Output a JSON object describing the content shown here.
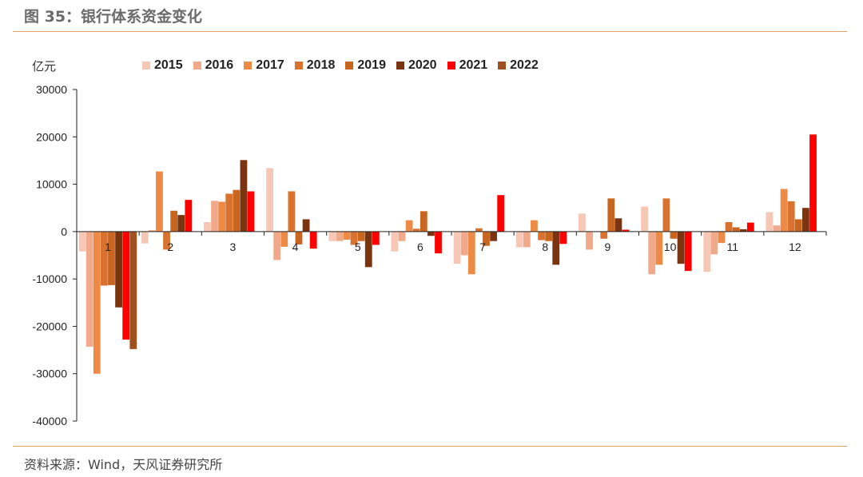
{
  "figure": {
    "title": "图 35：银行体系资金变化",
    "source": "资料来源：Wind，天风证券研究所"
  },
  "chart_data": {
    "type": "bar",
    "ylabel": "亿元",
    "ylim": [
      -40000,
      30000
    ],
    "yticks": [
      30000,
      20000,
      10000,
      0,
      -10000,
      -20000,
      -30000,
      -40000
    ],
    "categories": [
      "1",
      "2",
      "3",
      "4",
      "5",
      "6",
      "7",
      "8",
      "9",
      "10",
      "11",
      "12"
    ],
    "legend_position": "top",
    "series": [
      {
        "name": "2015",
        "color": "#f6c7b4",
        "values": [
          -4200,
          -2500,
          2000,
          13400,
          -2000,
          -4200,
          -6800,
          -3300,
          3800,
          5300,
          -8500,
          4100
        ]
      },
      {
        "name": "2016",
        "color": "#f0a98a",
        "values": [
          -24300,
          300,
          6500,
          -6000,
          -2000,
          -2000,
          -5000,
          -3300,
          -3800,
          -9000,
          -4800,
          1300
        ]
      },
      {
        "name": "2017",
        "color": "#ed8a45",
        "values": [
          -30000,
          12700,
          6300,
          -3200,
          -1700,
          2400,
          -9000,
          2400,
          0,
          -7000,
          -2400,
          9000
        ]
      },
      {
        "name": "2018",
        "color": "#d8722e",
        "values": [
          -11400,
          -3800,
          8000,
          8500,
          -2800,
          600,
          700,
          -1800,
          -1500,
          7000,
          2000,
          6400
        ]
      },
      {
        "name": "2019",
        "color": "#c8651e",
        "values": [
          -11300,
          4400,
          8800,
          -2700,
          -2000,
          4300,
          -3000,
          -2000,
          7000,
          -1500,
          900,
          2600
        ]
      },
      {
        "name": "2020",
        "color": "#7a3410",
        "values": [
          -16000,
          3500,
          15100,
          2600,
          -7500,
          -900,
          -2000,
          -7000,
          2800,
          -6800,
          500,
          5000
        ]
      },
      {
        "name": "2021",
        "color": "#ff0000",
        "values": [
          -22800,
          6700,
          8500,
          -3600,
          -2800,
          -4600,
          7700,
          -2600,
          400,
          -8300,
          1900,
          20500
        ]
      },
      {
        "name": "2022",
        "color": "#a0521e",
        "values": [
          -24800,
          null,
          null,
          null,
          null,
          null,
          null,
          null,
          null,
          null,
          null,
          null
        ]
      }
    ]
  }
}
